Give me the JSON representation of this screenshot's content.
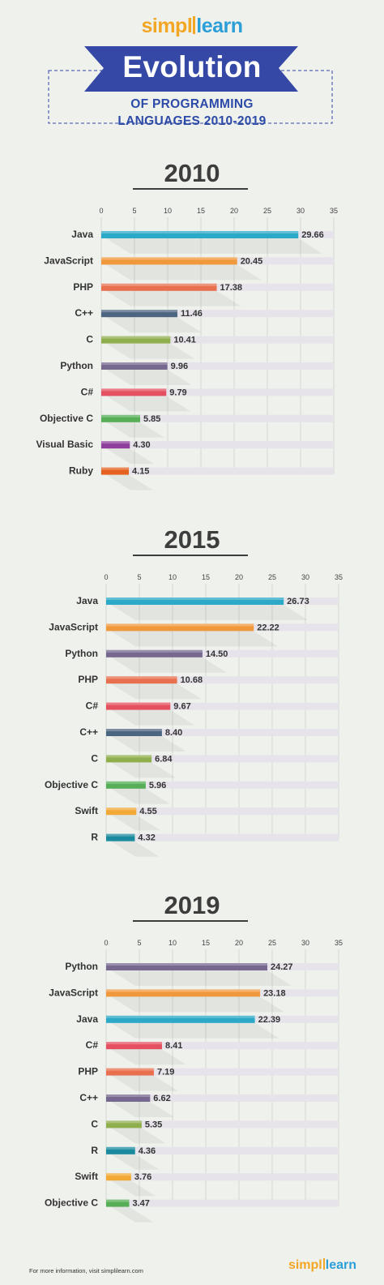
{
  "brand": {
    "part1": "simpl",
    "part2": "learn"
  },
  "header": {
    "title": "Evolution",
    "subtitle_line1": "OF PROGRAMMING",
    "subtitle_line2": "LANGUAGES 2010-2019"
  },
  "footer": {
    "note": "For more information, visit simplilearn.com"
  },
  "colors": {
    "banner": "#3548a6",
    "title_text": "#3d3d3d"
  },
  "chart_data": [
    {
      "type": "bar",
      "orientation": "horizontal",
      "title": "2010",
      "xlim": [
        0,
        35
      ],
      "ticks": [
        0,
        5,
        10,
        15,
        20,
        25,
        30,
        35
      ],
      "grid": true,
      "categories": [
        "Java",
        "JavaScript",
        "PHP",
        "C++",
        "C",
        "Python",
        "C#",
        "Objective C",
        "Visual Basic",
        "Ruby"
      ],
      "values": [
        29.66,
        20.45,
        17.38,
        11.46,
        10.41,
        9.96,
        9.79,
        5.85,
        4.3,
        4.15
      ],
      "value_labels": [
        "29.66",
        "20.45",
        "17.38",
        "11.46",
        "10.41",
        "9.96",
        "9.79",
        "5.85",
        "4.30",
        "4.15"
      ],
      "colors": [
        "#2ba9c6",
        "#f0983c",
        "#e8704f",
        "#4c6580",
        "#8fae4c",
        "#76688f",
        "#e4505f",
        "#56ae56",
        "#8e3f9c",
        "#e5611f"
      ]
    },
    {
      "type": "bar",
      "orientation": "horizontal",
      "title": "2015",
      "xlim": [
        0,
        35
      ],
      "ticks": [
        0,
        5,
        10,
        15,
        20,
        25,
        30,
        35
      ],
      "grid": true,
      "categories": [
        "Java",
        "JavaScript",
        "Python",
        "PHP",
        "C#",
        "C++",
        "C",
        "Objective C",
        "Swift",
        "R"
      ],
      "values": [
        26.73,
        22.22,
        14.5,
        10.68,
        9.67,
        8.4,
        6.84,
        5.96,
        4.55,
        4.32
      ],
      "value_labels": [
        "26.73",
        "22.22",
        "14.50",
        "10.68",
        "9.67",
        "8.40",
        "6.84",
        "5.96",
        "4.55",
        "4.32"
      ],
      "colors": [
        "#2ba9c6",
        "#f0983c",
        "#76688f",
        "#e8704f",
        "#e4505f",
        "#4c6580",
        "#8fae4c",
        "#56ae56",
        "#f2a935",
        "#1a8a9e"
      ]
    },
    {
      "type": "bar",
      "orientation": "horizontal",
      "title": "2019",
      "xlim": [
        0,
        35
      ],
      "ticks": [
        0,
        5,
        10,
        15,
        20,
        25,
        30,
        35
      ],
      "grid": true,
      "categories": [
        "Python",
        "JavaScript",
        "Java",
        "C#",
        "PHP",
        "C++",
        "C",
        "R",
        "Swift",
        "Objective C"
      ],
      "values": [
        24.27,
        23.18,
        22.39,
        8.41,
        7.19,
        6.62,
        5.35,
        4.36,
        3.76,
        3.47
      ],
      "value_labels": [
        "24.27",
        "23.18",
        "22.39",
        "8.41",
        "7.19",
        "6.62",
        "5.35",
        "4.36",
        "3.76",
        "3.47"
      ],
      "colors": [
        "#76688f",
        "#f0983c",
        "#2ba9c6",
        "#e4505f",
        "#e8704f",
        "#76688f",
        "#8fae4c",
        "#1a8a9e",
        "#f2a935",
        "#56ae56"
      ]
    }
  ]
}
